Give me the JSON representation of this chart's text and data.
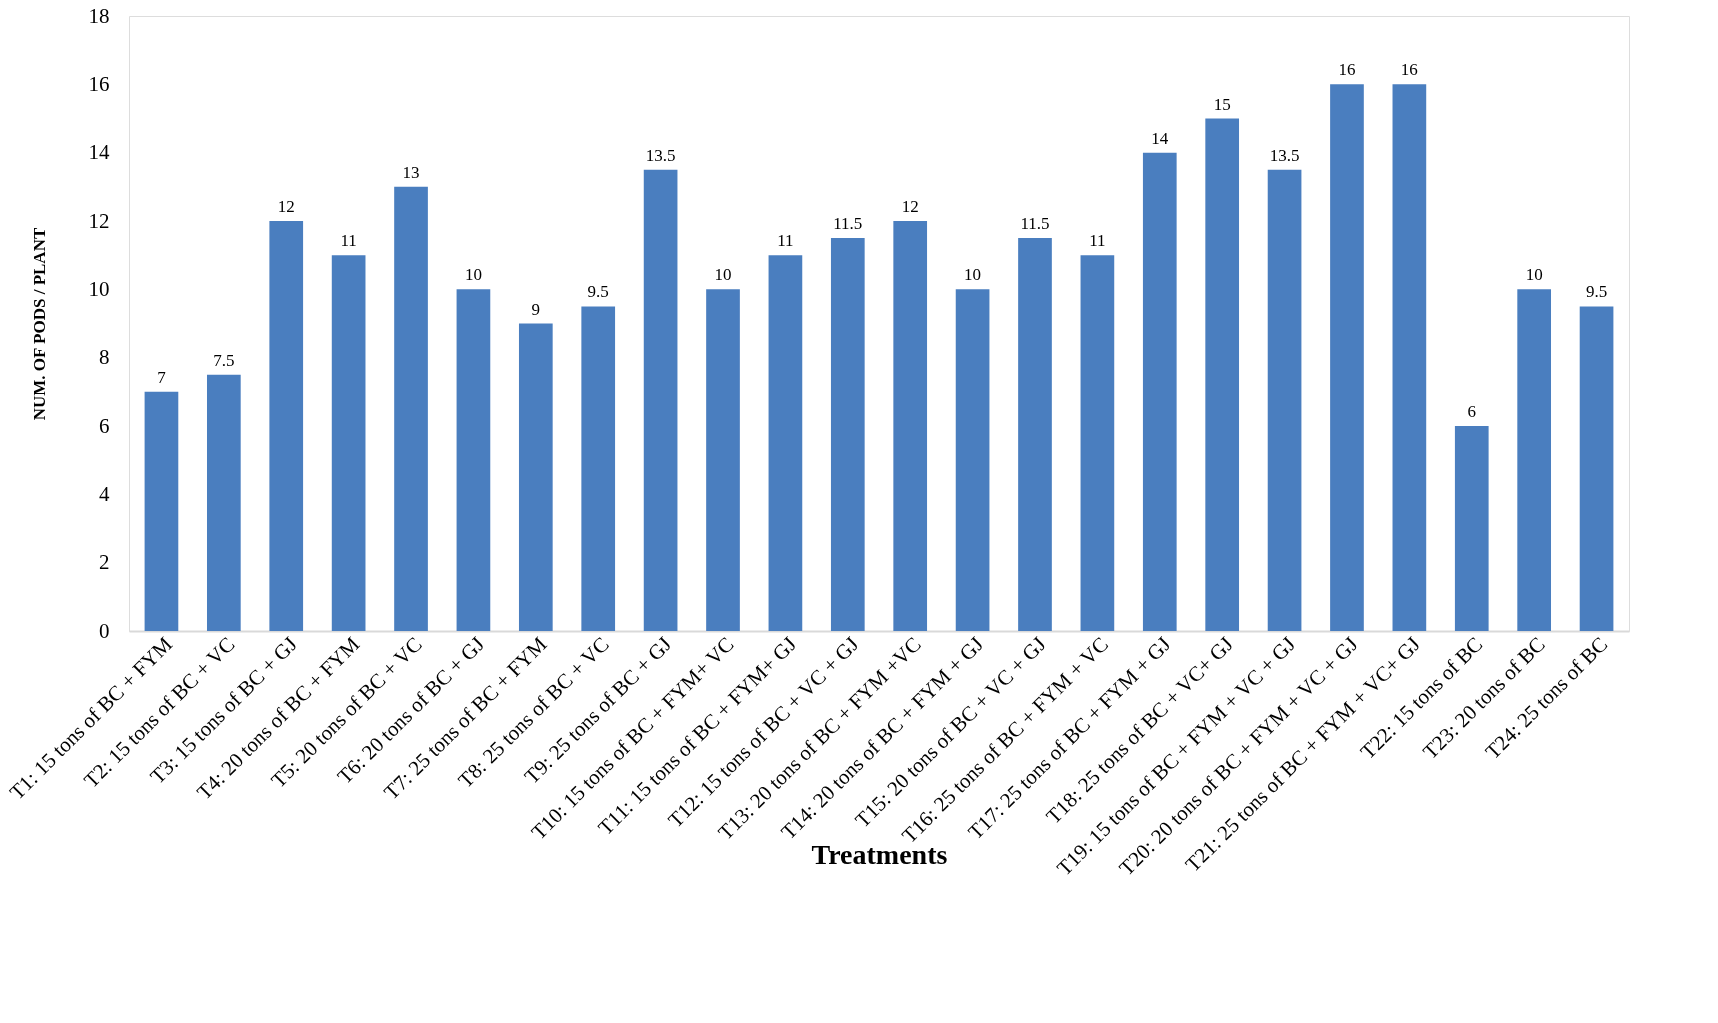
{
  "chart_data": {
    "type": "bar",
    "xlabel": "Treatments",
    "ylabel": "NUM. OF PODS / PLANT",
    "categories": [
      "T1: 15 tons of BC + FYM",
      "T2: 15 tons of BC + VC",
      "T3: 15 tons of BC + GJ",
      "T4: 20 tons of BC + FYM",
      "T5: 20 tons of BC + VC",
      "T6: 20 tons of BC + GJ",
      "T7: 25 tons of BC + FYM",
      "T8: 25 tons of BC + VC",
      "T9: 25 tons of BC + GJ",
      "T10: 15 tons of BC + FYM+ VC",
      "T11: 15 tons of BC + FYM+ GJ",
      "T12: 15 tons of BC + VC + GJ",
      "T13: 20 tons of BC + FYM +VC",
      "T14: 20 tons of BC + FYM + GJ",
      "T15: 20 tons of BC + VC + GJ",
      "T16: 25 tons of BC + FYM + VC",
      "T17: 25 tons of BC + FYM + GJ",
      "T18: 25 tons of BC + VC+ GJ",
      "T19: 15 tons of BC + FYM + VC + GJ",
      "T20: 20 tons of BC + FYM + VC + GJ",
      "T21: 25 tons of BC + FYM + VC+ GJ",
      "T22: 15 tons of BC",
      "T23: 20 tons of BC",
      "T24: 25 tons of BC"
    ],
    "values": [
      7,
      7.5,
      12,
      11,
      13,
      10,
      9,
      9.5,
      13.5,
      10,
      11,
      11.5,
      12,
      10,
      11.5,
      11,
      14,
      15,
      13.5,
      16,
      16,
      6,
      10,
      9.5
    ],
    "color": "#4a7ebf",
    "ylim": [
      0,
      18
    ],
    "yticks": [
      0,
      2,
      4,
      6,
      8,
      10,
      12,
      14,
      16,
      18
    ],
    "grid": false,
    "data_labels": true
  }
}
